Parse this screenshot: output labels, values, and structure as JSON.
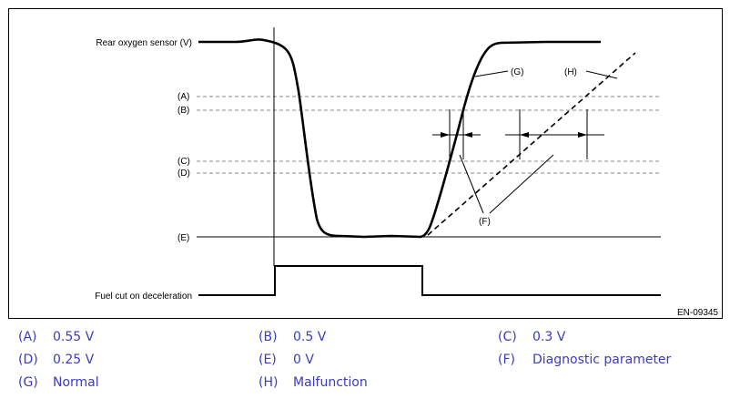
{
  "diagram": {
    "signal_label": "Rear oxygen sensor (V)",
    "fuel_cut_label": "Fuel cut on deceleration",
    "figure_code": "EN-09345",
    "level_labels": [
      "(A)",
      "(B)",
      "(C)",
      "(D)",
      "(E)"
    ],
    "curve_labels": {
      "normal": "(G)",
      "malfunction": "(H)",
      "parameter": "(F)"
    }
  },
  "legend": [
    {
      "key": "(A)",
      "text": "0.55 V"
    },
    {
      "key": "(B)",
      "text": "0.5 V"
    },
    {
      "key": "(C)",
      "text": "0.3 V"
    },
    {
      "key": "(D)",
      "text": "0.25 V"
    },
    {
      "key": "(E)",
      "text": "0 V"
    },
    {
      "key": "(F)",
      "text": "Diagnostic parameter"
    },
    {
      "key": "(G)",
      "text": "Normal"
    },
    {
      "key": "(H)",
      "text": "Malfunction"
    }
  ],
  "colors": {
    "legend_text": "#3b3bbf",
    "line": "#000000",
    "dashed": "#888888"
  }
}
